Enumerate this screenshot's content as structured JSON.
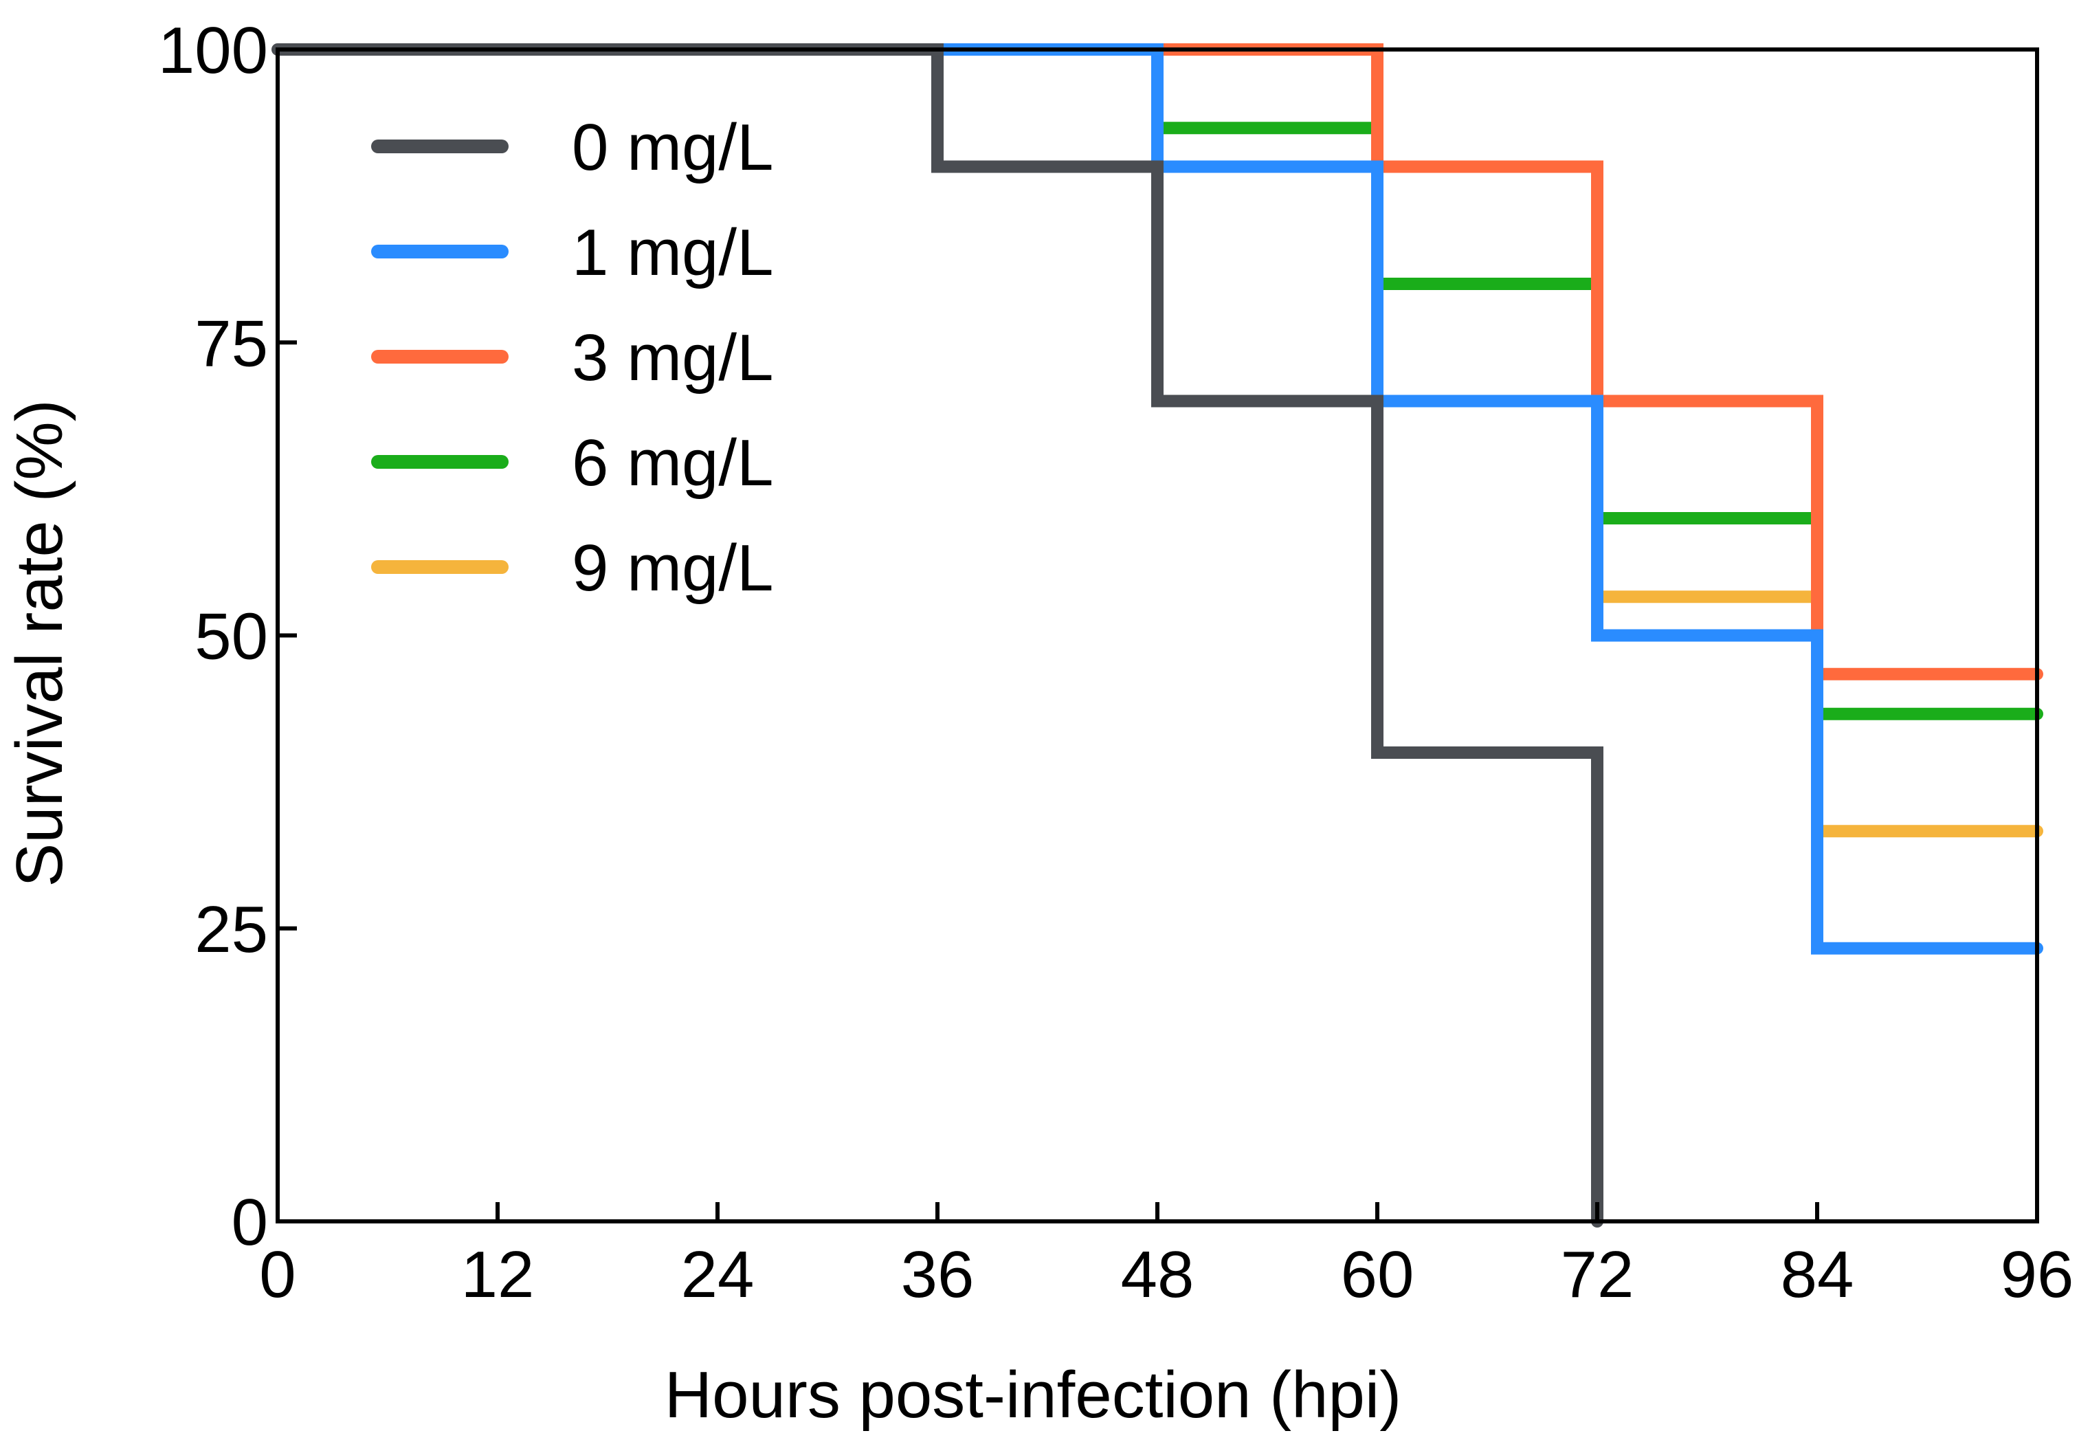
{
  "chart_data": {
    "type": "line",
    "step": true,
    "title": "",
    "xlabel": "Hours post-infection (hpi)",
    "ylabel": "Survival rate (%)",
    "xlim": [
      0,
      96
    ],
    "ylim": [
      0,
      100
    ],
    "xticks": [
      0,
      12,
      24,
      36,
      48,
      60,
      72,
      84,
      96
    ],
    "yticks": [
      0,
      25,
      50,
      75,
      100
    ],
    "xtick_labels": [
      "0",
      "12",
      "24",
      "36",
      "48",
      "60",
      "72",
      "84",
      "96"
    ],
    "ytick_labels": [
      "0",
      "25",
      "50",
      "75",
      "100"
    ],
    "grid": false,
    "legend_position": "top-left",
    "series": [
      {
        "name": "0 mg/L",
        "color": "#4a4d52",
        "x": [
          0,
          36,
          48,
          60,
          72
        ],
        "y": [
          100,
          90,
          70,
          40,
          0
        ]
      },
      {
        "name": "1 mg/L",
        "color": "#2a8cff",
        "x": [
          36,
          48,
          60,
          72,
          84,
          96
        ],
        "y": [
          100,
          90,
          70,
          50,
          23.3,
          23.3
        ]
      },
      {
        "name": "3 mg/L",
        "color": "#ff6a3d",
        "x": [
          48,
          60,
          72,
          84,
          96
        ],
        "y": [
          100,
          90,
          70,
          46.7,
          46.7
        ]
      },
      {
        "name": "6 mg/L",
        "color": "#1aad1a",
        "x": [
          48,
          60,
          72,
          84,
          96
        ],
        "y": [
          93.3,
          80,
          60,
          43.3,
          43.3
        ]
      },
      {
        "name": "9 mg/L",
        "color": "#f5b43c",
        "x": [
          72,
          84,
          96
        ],
        "y": [
          53.3,
          33.3,
          33.3
        ]
      }
    ]
  }
}
